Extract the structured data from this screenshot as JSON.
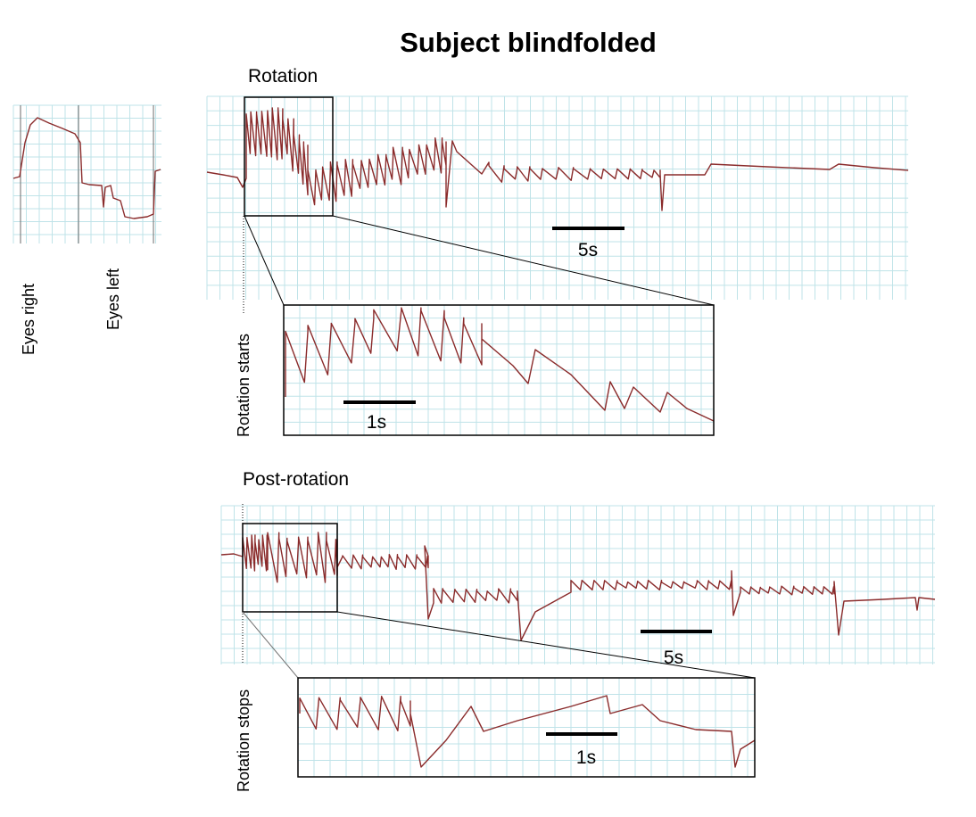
{
  "figure": {
    "title": "Subject blindfolded",
    "calibration": {
      "left_label": "Eyes right",
      "right_label": "Eyes left"
    },
    "rotation": {
      "panel_label": "Rotation",
      "marker_label": "Rotation starts",
      "scale_main": "5s",
      "scale_zoom": "1s"
    },
    "post_rotation": {
      "panel_label": "Post-rotation",
      "marker_label": "Rotation stops",
      "scale_main": "5s",
      "scale_zoom": "1s"
    }
  },
  "colors": {
    "trace": "#8a2b2b",
    "grid": "#bfe3e8",
    "frame": "#000000"
  }
}
